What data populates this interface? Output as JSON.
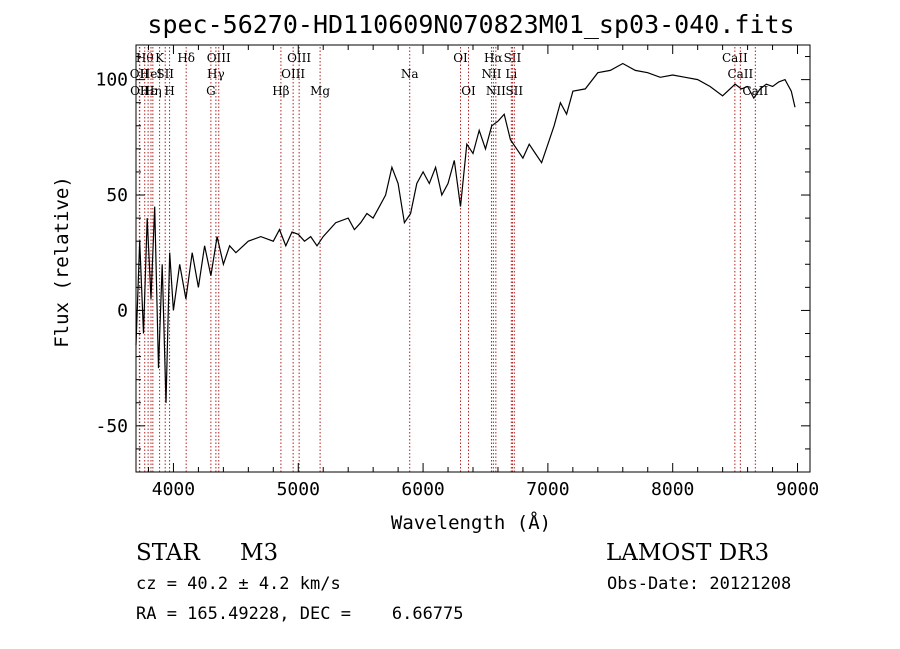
{
  "chart_data": {
    "type": "line",
    "title": "spec-56270-HD110609N070823M01_sp03-040.fits",
    "xlabel": "Wavelength (Å)",
    "ylabel": "Flux (relative)",
    "xlim": [
      3700,
      9100
    ],
    "ylim": [
      -70,
      115
    ],
    "xticks": [
      4000,
      5000,
      6000,
      7000,
      8000,
      9000
    ],
    "yticks": [
      -50,
      0,
      50,
      100
    ],
    "grid": false,
    "legend": "none",
    "line_color": "#000000",
    "marker_color": "#b22222",
    "series": [
      {
        "x": [
          3700,
          3730,
          3760,
          3790,
          3820,
          3850,
          3880,
          3910,
          3940,
          3970,
          4000,
          4050,
          4100,
          4150,
          4200,
          4250,
          4300,
          4350,
          4400,
          4450,
          4500,
          4600,
          4700,
          4800,
          4850,
          4900,
          4950,
          5000,
          5050,
          5100,
          5150,
          5200,
          5300,
          5400,
          5450,
          5500,
          5550,
          5600,
          5650,
          5700,
          5750,
          5800,
          5850,
          5900,
          5950,
          6000,
          6050,
          6100,
          6150,
          6200,
          6250,
          6300,
          6350,
          6400,
          6450,
          6500,
          6550,
          6600,
          6650,
          6700,
          6750,
          6800,
          6850,
          6900,
          6950,
          7000,
          7050,
          7100,
          7150,
          7200,
          7300,
          7400,
          7500,
          7600,
          7700,
          7800,
          7900,
          8000,
          8100,
          8200,
          8300,
          8400,
          8500,
          8550,
          8600,
          8650,
          8700,
          8750,
          8800,
          8850,
          8900,
          8950,
          8980
        ],
        "values": [
          -15,
          30,
          -10,
          40,
          5,
          45,
          -25,
          20,
          -40,
          25,
          0,
          20,
          5,
          25,
          10,
          28,
          15,
          32,
          20,
          28,
          25,
          30,
          32,
          30,
          35,
          28,
          34,
          33,
          30,
          32,
          28,
          32,
          38,
          40,
          35,
          38,
          42,
          40,
          45,
          50,
          62,
          55,
          38,
          42,
          55,
          60,
          55,
          62,
          50,
          55,
          65,
          45,
          72,
          68,
          78,
          70,
          80,
          82,
          85,
          74,
          70,
          66,
          72,
          68,
          64,
          72,
          80,
          90,
          85,
          95,
          96,
          103,
          104,
          107,
          104,
          103,
          101,
          102,
          101,
          100,
          97,
          93,
          98,
          96,
          97,
          92,
          96,
          98,
          97,
          99,
          100,
          95,
          88
        ]
      }
    ],
    "marker_lines": [
      {
        "wl": 3770,
        "label": "Hθ",
        "row": 1
      },
      {
        "wl": 3727,
        "label": "OII",
        "row": 2
      },
      {
        "wl": 3730,
        "label": "OII",
        "row": 3
      },
      {
        "wl": 3797,
        "label": "Hε",
        "row": 3
      },
      {
        "wl": 3835,
        "label": "Hη",
        "row": 3
      },
      {
        "wl": 3820,
        "label": "HeI",
        "row": 2
      },
      {
        "wl": 3889,
        "label": "K",
        "row": 1
      },
      {
        "wl": 3934,
        "label": "SII",
        "row": 2
      },
      {
        "wl": 3969,
        "label": "H",
        "row": 3
      },
      {
        "wl": 4102,
        "label": "Hδ",
        "row": 1
      },
      {
        "wl": 4300,
        "label": "G",
        "row": 3
      },
      {
        "wl": 4340,
        "label": "Hγ",
        "row": 2
      },
      {
        "wl": 4363,
        "label": "OIII",
        "row": 1
      },
      {
        "wl": 4861,
        "label": "Hβ",
        "row": 3
      },
      {
        "wl": 4959,
        "label": "OIII",
        "row": 2
      },
      {
        "wl": 5007,
        "label": "OIII",
        "row": 1
      },
      {
        "wl": 5175,
        "label": "Mg",
        "row": 3
      },
      {
        "wl": 5893,
        "label": "Na",
        "row": 2
      },
      {
        "wl": 6300,
        "label": "OI",
        "row": 1
      },
      {
        "wl": 6364,
        "label": "OI",
        "row": 3
      },
      {
        "wl": 6548,
        "label": "NII",
        "row": 2
      },
      {
        "wl": 6563,
        "label": "Hα",
        "row": 1
      },
      {
        "wl": 6583,
        "label": "NII",
        "row": 3
      },
      {
        "wl": 6707,
        "label": "Li",
        "row": 2
      },
      {
        "wl": 6716,
        "label": "SII",
        "row": 1
      },
      {
        "wl": 6731,
        "label": "SII",
        "row": 3
      },
      {
        "wl": 8498,
        "label": "CaII",
        "row": 1
      },
      {
        "wl": 8542,
        "label": "CaII",
        "row": 2
      },
      {
        "wl": 8662,
        "label": "CaII",
        "row": 3
      }
    ]
  },
  "info": {
    "class": "STAR",
    "subclass": "M3",
    "survey": "LAMOST DR3",
    "cz": "cz = 40.2 ± 4.2 km/s",
    "obs_date": "Obs-Date: 20121208",
    "radec": "RA = 165.49228, DEC =    6.66775"
  }
}
